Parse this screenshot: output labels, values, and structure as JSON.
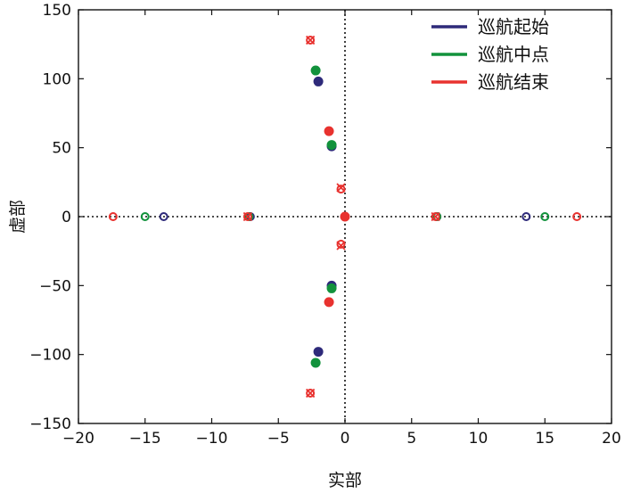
{
  "chart_data": {
    "type": "scatter",
    "xlabel": "实部",
    "ylabel": "虚部",
    "xlim": [
      -20,
      20
    ],
    "ylim": [
      -150,
      150
    ],
    "xticks": [
      -20,
      -15,
      -10,
      -5,
      0,
      5,
      10,
      15,
      20
    ],
    "yticks": [
      -150,
      -100,
      -50,
      0,
      50,
      100,
      150
    ],
    "xtick_labels": [
      "−20",
      "−15",
      "−10",
      "−5",
      "0",
      "5",
      "10",
      "15",
      "20"
    ],
    "ytick_labels": [
      "−150",
      "−100",
      "−50",
      "0",
      "50",
      "100",
      "150"
    ],
    "legend_position": "top-right",
    "reference_lines": [
      "x=0 dotted",
      "y=0 dotted"
    ],
    "series": [
      {
        "name": "巡航起始",
        "color": "#2e2a7a",
        "filled": [
          [
            -2.0,
            98
          ],
          [
            -2.0,
            -98
          ],
          [
            -1.0,
            51
          ],
          [
            -1.0,
            -50
          ]
        ],
        "open": [
          [
            -13.6,
            0
          ],
          [
            13.6,
            0
          ],
          [
            -7.1,
            0
          ],
          [
            6.9,
            0
          ]
        ],
        "crosses": []
      },
      {
        "name": "巡航中点",
        "color": "#12923c",
        "filled": [
          [
            -2.2,
            106
          ],
          [
            -2.2,
            -106
          ],
          [
            -1.0,
            52
          ],
          [
            -1.0,
            -52
          ]
        ],
        "open": [
          [
            -15.0,
            0
          ],
          [
            15.0,
            0
          ],
          [
            -7.2,
            0
          ],
          [
            6.9,
            0
          ]
        ],
        "crosses": []
      },
      {
        "name": "巡航结束",
        "color": "#e8322f",
        "filled": [
          [
            -1.2,
            62
          ],
          [
            -1.2,
            -62
          ],
          [
            0,
            0
          ]
        ],
        "open": [
          [
            -17.4,
            0
          ],
          [
            17.4,
            0
          ],
          [
            -7.3,
            0
          ],
          [
            6.8,
            0
          ],
          [
            -2.6,
            128
          ],
          [
            -2.6,
            -128
          ],
          [
            -0.3,
            20
          ],
          [
            -0.3,
            -20
          ]
        ],
        "crosses": [
          [
            -2.6,
            128
          ],
          [
            -2.6,
            -128
          ],
          [
            -0.3,
            21
          ],
          [
            -0.3,
            -21
          ],
          [
            -7.3,
            0
          ],
          [
            6.8,
            0
          ]
        ]
      }
    ]
  }
}
